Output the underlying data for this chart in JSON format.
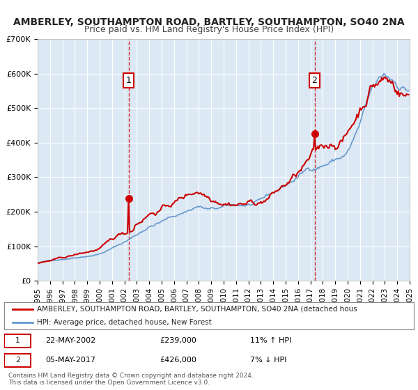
{
  "title": "AMBERLEY, SOUTHAMPTON ROAD, BARTLEY, SOUTHAMPTON, SO40 2NA",
  "subtitle": "Price paid vs. HM Land Registry's House Price Index (HPI)",
  "title_fontsize": 10,
  "subtitle_fontsize": 9,
  "bg_color": "#ffffff",
  "plot_bg_color": "#dce9f5",
  "grid_color": "#ffffff",
  "red_line_color": "#cc0000",
  "blue_line_color": "#6699cc",
  "marker1_date_idx": 73,
  "marker2_date_idx": 265,
  "marker1_label": "1",
  "marker2_label": "2",
  "marker1_price": 239000,
  "marker2_price": 426000,
  "vline_color": "#cc0000",
  "ylim": [
    0,
    700000
  ],
  "yticks": [
    0,
    100000,
    200000,
    300000,
    400000,
    500000,
    600000,
    700000
  ],
  "ytick_labels": [
    "£0",
    "£100K",
    "£200K",
    "£300K",
    "£400K",
    "£500K",
    "£600K",
    "£700K"
  ],
  "legend_label_red": "AMBERLEY, SOUTHAMPTON ROAD, BARTLEY, SOUTHAMPTON, SO40 2NA (detached hous",
  "legend_label_blue": "HPI: Average price, detached house, New Forest",
  "annotation1_date": "22-MAY-2002",
  "annotation1_price": "£239,000",
  "annotation1_hpi": "11% ↑ HPI",
  "annotation2_date": "05-MAY-2017",
  "annotation2_price": "£426,000",
  "annotation2_hpi": "7% ↓ HPI",
  "footer_text": "Contains HM Land Registry data © Crown copyright and database right 2024.\nThis data is licensed under the Open Government Licence v3.0.",
  "xstart_year": 1995,
  "xend_year": 2025
}
